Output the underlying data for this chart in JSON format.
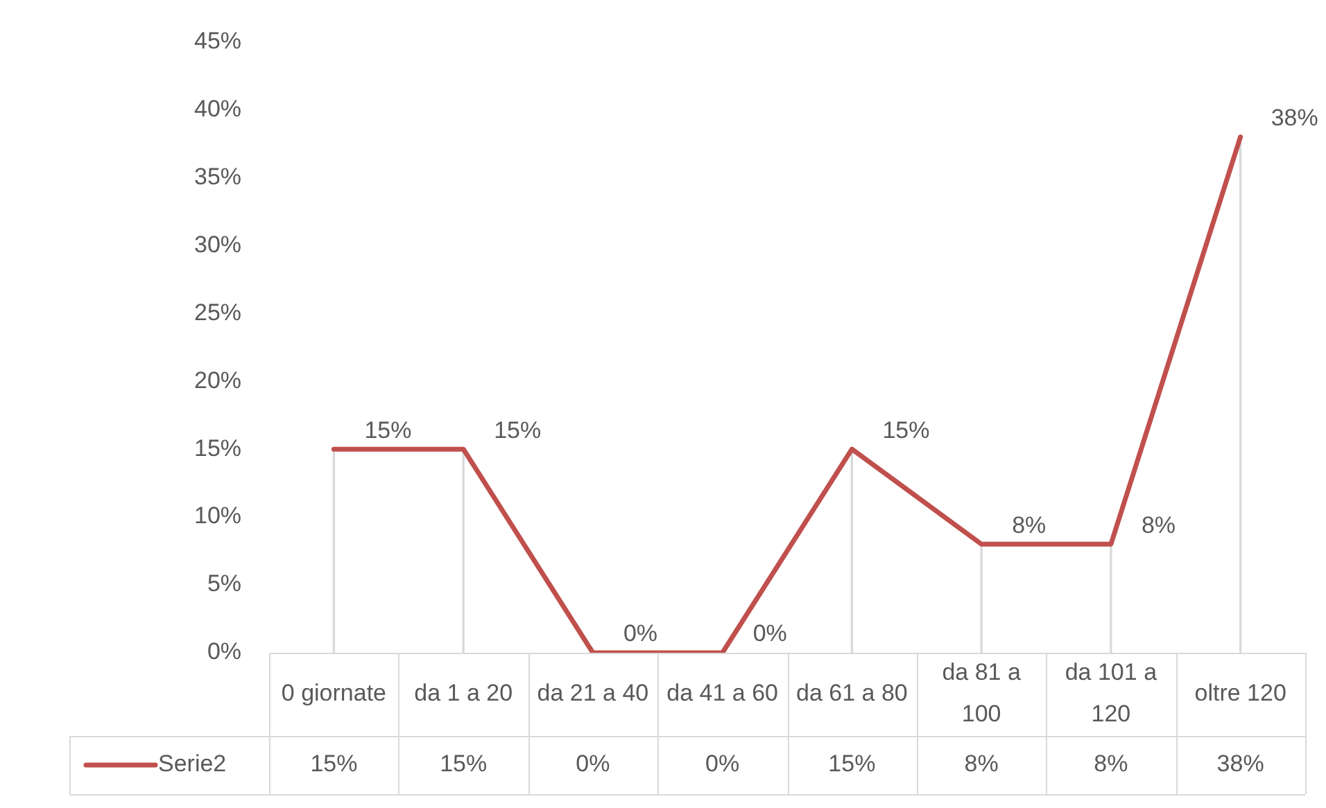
{
  "chart_data": {
    "type": "line",
    "categories": [
      "0 giornate",
      "da 1 a 20",
      "da 21 a 40",
      "da 41 a 60",
      "da 61 a 80",
      "da 81 a 100",
      "da 101 a 120",
      "oltre 120"
    ],
    "series": [
      {
        "name": "Serie2",
        "color": "#c0504d",
        "values": [
          15,
          15,
          0,
          0,
          15,
          8,
          8,
          38
        ],
        "value_labels": [
          "15%",
          "15%",
          "0%",
          "0%",
          "15%",
          "8%",
          "8%",
          "38%"
        ]
      },
      {
        "type": "bar",
        "color": "#d9d9d9",
        "values": [
          15,
          15,
          0,
          0,
          15,
          8,
          8,
          38
        ]
      }
    ],
    "ylim": [
      0,
      45
    ],
    "yticks": [
      {
        "value": 0,
        "label": "0%"
      },
      {
        "value": 5,
        "label": "5%"
      },
      {
        "value": 10,
        "label": "10%"
      },
      {
        "value": 15,
        "label": "15%"
      },
      {
        "value": 20,
        "label": "20%"
      },
      {
        "value": 25,
        "label": "25%"
      },
      {
        "value": 30,
        "label": "30%"
      },
      {
        "value": 35,
        "label": "35%"
      },
      {
        "value": 40,
        "label": "40%"
      },
      {
        "value": 45,
        "label": "45%"
      }
    ],
    "legend": "bottom",
    "marker": "none",
    "line_style": "solid",
    "grid": false
  }
}
